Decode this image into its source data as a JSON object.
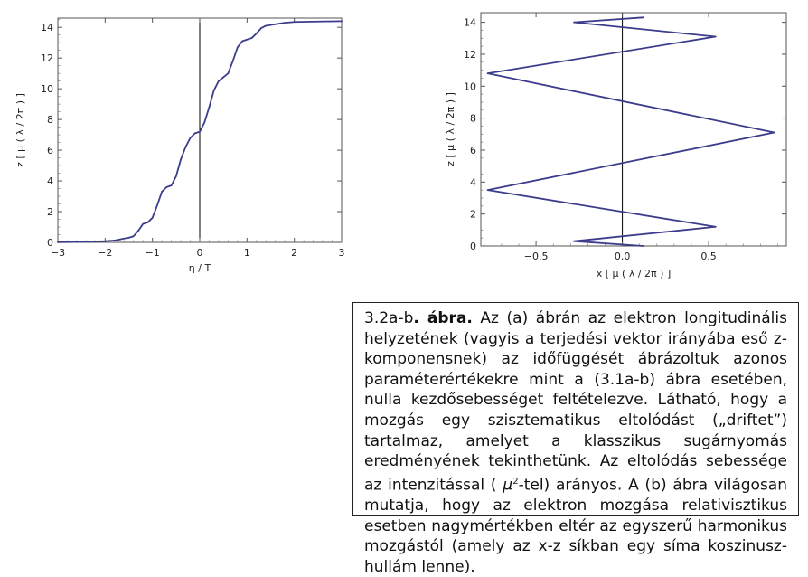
{
  "chart_data": [
    {
      "type": "line",
      "panel": "a",
      "xlabel": "η / T",
      "ylabel": "z [ μ ( λ / 2π ) ]",
      "xlim": [
        -3,
        3
      ],
      "ylim": [
        0,
        14.6
      ],
      "xticks": [
        -3,
        -2,
        -1,
        0,
        1,
        2,
        3
      ],
      "yticks": [
        0,
        2,
        4,
        6,
        8,
        10,
        12,
        14
      ],
      "xtick_labels": [
        "−3",
        "−2",
        "−1",
        "0",
        "1",
        "2",
        "3"
      ],
      "ytick_labels": [
        "0",
        "2",
        "4",
        "6",
        "8",
        "10",
        "12",
        "14"
      ],
      "grid": false,
      "series_color": "#3c3c8c",
      "series": [
        {
          "x": [
            -3,
            -2.5,
            -2,
            -1.8,
            -1.6,
            -1.5,
            -1.4,
            -1.3,
            -1.2,
            -1.1,
            -1.0,
            -0.9,
            -0.8,
            -0.7,
            -0.6,
            -0.5,
            -0.4,
            -0.3,
            -0.2,
            -0.1,
            0,
            0.1,
            0.2,
            0.3,
            0.4,
            0.5,
            0.6,
            0.7,
            0.8,
            0.9,
            1.0,
            1.1,
            1.2,
            1.3,
            1.4,
            1.5,
            1.6,
            1.7,
            1.8,
            2.0,
            2.5,
            3.0
          ],
          "y": [
            0.01,
            0.03,
            0.08,
            0.12,
            0.25,
            0.3,
            0.4,
            0.75,
            1.2,
            1.3,
            1.6,
            2.4,
            3.3,
            3.6,
            3.7,
            4.3,
            5.4,
            6.2,
            6.8,
            7.1,
            7.2,
            7.8,
            8.8,
            9.9,
            10.5,
            10.75,
            11.0,
            11.8,
            12.7,
            13.1,
            13.2,
            13.3,
            13.6,
            13.95,
            14.1,
            14.15,
            14.2,
            14.25,
            14.3,
            14.35,
            14.38,
            14.4
          ]
        }
      ]
    },
    {
      "type": "line",
      "panel": "b",
      "xlabel": "x [ μ ( λ / 2π ) ]",
      "ylabel": "z [ μ ( λ / 2π ) ]",
      "xlim": [
        -0.82,
        0.95
      ],
      "ylim": [
        0,
        14.6
      ],
      "xticks": [
        -0.5,
        0.0,
        0.5
      ],
      "yticks": [
        0,
        2,
        4,
        6,
        8,
        10,
        12,
        14
      ],
      "xtick_labels": [
        "−0.5",
        "0.0",
        "0.5"
      ],
      "ytick_labels": [
        "0",
        "2",
        "4",
        "6",
        "8",
        "10",
        "12",
        "14"
      ],
      "grid": false,
      "series_color": "#3c3c8c",
      "series": [
        {
          "x": [
            0.12,
            -0.28,
            0.54,
            -0.78,
            0.88,
            -0.78,
            0.54,
            -0.28,
            0.12
          ],
          "y": [
            0.0,
            0.3,
            1.2,
            3.5,
            7.1,
            10.8,
            13.1,
            14.0,
            14.3
          ]
        }
      ]
    }
  ],
  "caption": {
    "figure_ref": "3.2a-b",
    "figure_word": ". ábra.",
    "text_part1": " Az (a) ábrán az elektron longitudinális helyzetének (vagyis a terjedési vektor irányába eső z-komponensnek) az időfüggését ábrázoltuk azonos paraméterértékekre mint a (3.1a-b) ábra esetében, nulla kezdősebességet feltételezve. Látható, hogy a mozgás egy szisztematikus eltolódást („driftet”) tartalmaz, amelyet a klasszikus sugárnyomás eredményének tekinthetünk. Az eltolódás sebessége az intenzitással (",
    "mu_symbol": "μ",
    "superscript": "2",
    "text_part2": "-tel) arányos. A (b) ábra világosan mutatja, hogy az elektron mozgása relativisztikus esetben nagymértékben eltér az egyszerű harmonikus mozgástól (amely az x-z síkban egy síma koszinusz-hullám lenne)."
  }
}
